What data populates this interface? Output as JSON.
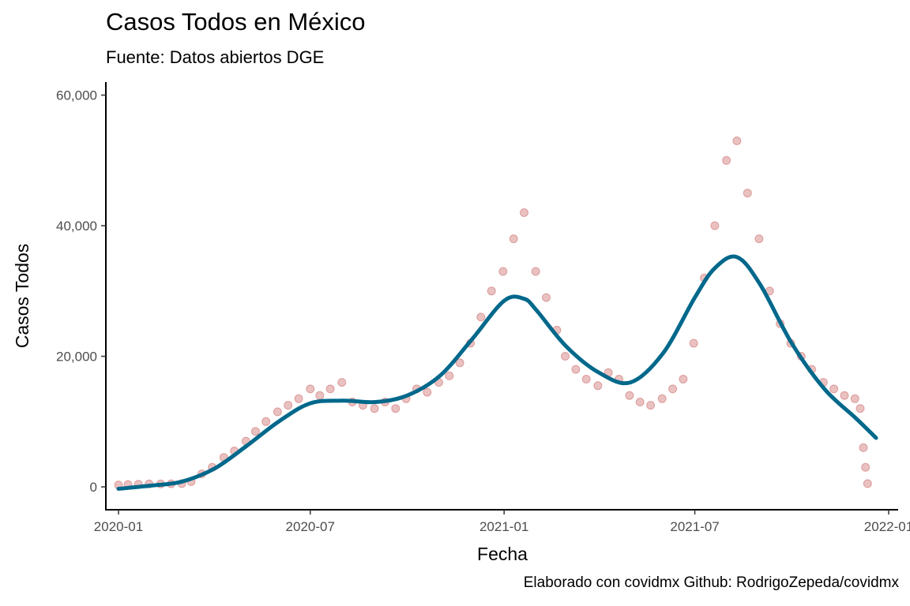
{
  "chart_data": {
    "type": "scatter",
    "title": "Casos Todos en México",
    "subtitle": "Fuente: Datos abiertos DGE",
    "caption": "Elaborado con covidmx Github: RodrigoZepeda/covidmx",
    "xlabel": "Fecha",
    "ylabel": "Casos Todos",
    "x_ticks": [
      "2020-01",
      "2020-07",
      "2021-01",
      "2021-07",
      "2022-01"
    ],
    "y_ticks": [
      "0",
      "20,000",
      "40,000",
      "60,000"
    ],
    "xlim": [
      "2019-12-20",
      "2022-01-10"
    ],
    "ylim": [
      -3500,
      62000
    ],
    "grid": false,
    "point_color": "#b22222",
    "line_color": "#00688b",
    "series": [
      {
        "type": "scatter",
        "points": [
          [
            "2020-01-01",
            300
          ],
          [
            "2020-01-10",
            350
          ],
          [
            "2020-01-20",
            400
          ],
          [
            "2020-01-30",
            450
          ],
          [
            "2020-02-10",
            450
          ],
          [
            "2020-02-20",
            480
          ],
          [
            "2020-03-01",
            500
          ],
          [
            "2020-03-10",
            800
          ],
          [
            "2020-03-20",
            2000
          ],
          [
            "2020-03-30",
            3000
          ],
          [
            "2020-04-10",
            4500
          ],
          [
            "2020-04-20",
            5500
          ],
          [
            "2020-05-01",
            7000
          ],
          [
            "2020-05-10",
            8500
          ],
          [
            "2020-05-20",
            10000
          ],
          [
            "2020-05-31",
            11500
          ],
          [
            "2020-06-10",
            12500
          ],
          [
            "2020-06-20",
            13500
          ],
          [
            "2020-07-01",
            15000
          ],
          [
            "2020-07-10",
            14000
          ],
          [
            "2020-07-20",
            15000
          ],
          [
            "2020-07-31",
            16000
          ],
          [
            "2020-08-10",
            13000
          ],
          [
            "2020-08-20",
            12500
          ],
          [
            "2020-08-31",
            12000
          ],
          [
            "2020-09-10",
            13000
          ],
          [
            "2020-09-20",
            12000
          ],
          [
            "2020-09-30",
            13500
          ],
          [
            "2020-10-10",
            15000
          ],
          [
            "2020-10-20",
            14500
          ],
          [
            "2020-10-31",
            16000
          ],
          [
            "2020-11-10",
            17000
          ],
          [
            "2020-11-20",
            19000
          ],
          [
            "2020-11-30",
            22000
          ],
          [
            "2020-12-10",
            26000
          ],
          [
            "2020-12-20",
            30000
          ],
          [
            "2020-12-31",
            33000
          ],
          [
            "2021-01-10",
            38000
          ],
          [
            "2021-01-20",
            42000
          ],
          [
            "2021-01-31",
            33000
          ],
          [
            "2021-02-10",
            29000
          ],
          [
            "2021-02-20",
            24000
          ],
          [
            "2021-02-28",
            20000
          ],
          [
            "2021-03-10",
            18000
          ],
          [
            "2021-03-20",
            16500
          ],
          [
            "2021-03-31",
            15500
          ],
          [
            "2021-04-10",
            17500
          ],
          [
            "2021-04-20",
            16500
          ],
          [
            "2021-04-30",
            14000
          ],
          [
            "2021-05-10",
            13000
          ],
          [
            "2021-05-20",
            12500
          ],
          [
            "2021-05-31",
            13500
          ],
          [
            "2021-06-10",
            15000
          ],
          [
            "2021-06-20",
            16500
          ],
          [
            "2021-06-30",
            22000
          ],
          [
            "2021-07-10",
            32000
          ],
          [
            "2021-07-20",
            40000
          ],
          [
            "2021-07-31",
            50000
          ],
          [
            "2021-08-10",
            53000
          ],
          [
            "2021-08-20",
            45000
          ],
          [
            "2021-08-31",
            38000
          ],
          [
            "2021-09-10",
            30000
          ],
          [
            "2021-09-20",
            25000
          ],
          [
            "2021-09-30",
            22000
          ],
          [
            "2021-10-10",
            20000
          ],
          [
            "2021-10-20",
            18000
          ],
          [
            "2021-10-31",
            16000
          ],
          [
            "2021-11-10",
            15000
          ],
          [
            "2021-11-20",
            14000
          ],
          [
            "2021-11-30",
            13500
          ],
          [
            "2021-12-05",
            12000
          ],
          [
            "2021-12-08",
            6000
          ],
          [
            "2021-12-10",
            3000
          ],
          [
            "2021-12-12",
            500
          ]
        ]
      },
      {
        "type": "line",
        "name": "",
        "points": [
          [
            "2020-01-01",
            -300
          ],
          [
            "2020-02-01",
            200
          ],
          [
            "2020-03-01",
            800
          ],
          [
            "2020-04-01",
            2800
          ],
          [
            "2020-05-01",
            6200
          ],
          [
            "2020-06-01",
            10000
          ],
          [
            "2020-07-01",
            12800
          ],
          [
            "2020-08-01",
            13200
          ],
          [
            "2020-09-01",
            13000
          ],
          [
            "2020-10-01",
            14000
          ],
          [
            "2020-11-01",
            17000
          ],
          [
            "2020-12-01",
            22500
          ],
          [
            "2021-01-01",
            28500
          ],
          [
            "2021-01-20",
            28800
          ],
          [
            "2021-02-01",
            27000
          ],
          [
            "2021-03-01",
            21500
          ],
          [
            "2021-04-01",
            17500
          ],
          [
            "2021-05-01",
            16000
          ],
          [
            "2021-06-01",
            20500
          ],
          [
            "2021-07-01",
            29000
          ],
          [
            "2021-07-20",
            33500
          ],
          [
            "2021-08-10",
            35200
          ],
          [
            "2021-09-01",
            31000
          ],
          [
            "2021-10-01",
            22000
          ],
          [
            "2021-11-01",
            15000
          ],
          [
            "2021-12-01",
            10500
          ],
          [
            "2021-12-20",
            7500
          ]
        ]
      }
    ]
  }
}
